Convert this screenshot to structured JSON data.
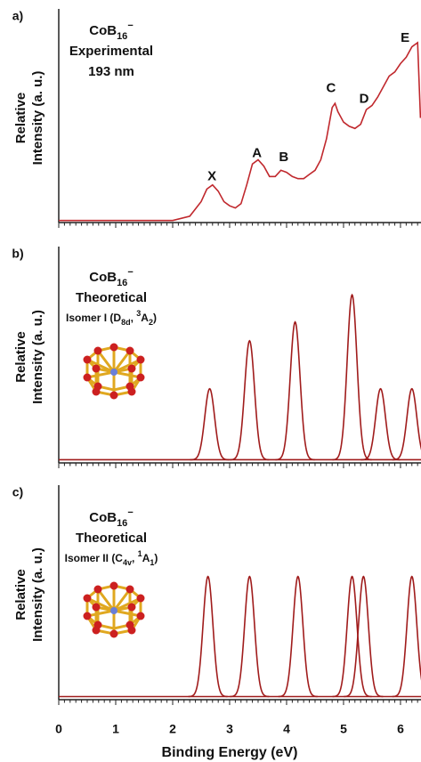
{
  "chart_data": [
    {
      "type": "line",
      "panel_label": "a)",
      "ylabel": [
        "Relative",
        "Intensity (a. u.)"
      ],
      "title_lines": [
        [
          {
            "text": "CoB"
          },
          {
            "text": "16",
            "style": "sub"
          },
          {
            "text": "−",
            "style": "sup"
          }
        ],
        [
          {
            "text": "Experimental"
          }
        ],
        [
          {
            "text": "193 nm"
          }
        ]
      ],
      "x": [
        0,
        2.0,
        2.3,
        2.5,
        2.6,
        2.7,
        2.8,
        2.9,
        3.0,
        3.1,
        3.2,
        3.3,
        3.4,
        3.5,
        3.6,
        3.7,
        3.8,
        3.9,
        4.0,
        4.1,
        4.2,
        4.3,
        4.4,
        4.5,
        4.6,
        4.7,
        4.8,
        4.85,
        4.9,
        5.0,
        5.1,
        5.2,
        5.3,
        5.4,
        5.5,
        5.6,
        5.7,
        5.8,
        5.9,
        6.0,
        6.1,
        6.2,
        6.3,
        6.35
      ],
      "values": [
        0.01,
        0.01,
        0.03,
        0.1,
        0.16,
        0.18,
        0.15,
        0.1,
        0.08,
        0.07,
        0.09,
        0.18,
        0.28,
        0.3,
        0.27,
        0.22,
        0.22,
        0.25,
        0.24,
        0.22,
        0.21,
        0.21,
        0.23,
        0.25,
        0.3,
        0.4,
        0.55,
        0.57,
        0.53,
        0.48,
        0.46,
        0.45,
        0.47,
        0.54,
        0.56,
        0.6,
        0.65,
        0.7,
        0.72,
        0.76,
        0.79,
        0.84,
        0.86,
        0.5
      ],
      "color": "#c0282d",
      "annotations": [
        {
          "text": "X",
          "x": 2.69,
          "y": 0.22
        },
        {
          "text": "A",
          "x": 3.48,
          "y": 0.33
        },
        {
          "text": "B",
          "x": 3.95,
          "y": 0.31
        },
        {
          "text": "C",
          "x": 4.78,
          "y": 0.64
        },
        {
          "text": "D",
          "x": 5.36,
          "y": 0.59
        },
        {
          "text": "E",
          "x": 6.08,
          "y": 0.88
        }
      ],
      "xlim": [
        0,
        6.36
      ],
      "ylim": [
        0,
        1
      ],
      "xticks": [
        0,
        1,
        2,
        3,
        4,
        5,
        6
      ]
    },
    {
      "type": "peaks",
      "panel_label": "b)",
      "ylabel": [
        "Relative",
        "Intensity (a. u.)"
      ],
      "title_lines": [
        [
          {
            "text": "CoB"
          },
          {
            "text": "16",
            "style": "sub"
          },
          {
            "text": "−",
            "style": "sup"
          }
        ],
        [
          {
            "text": "Theoretical"
          }
        ],
        [
          {
            "text": "Isomer I (D"
          },
          {
            "text": "8d",
            "style": "sub"
          },
          {
            "text": ", "
          },
          {
            "text": "3",
            "style": "sup"
          },
          {
            "text": "A"
          },
          {
            "text": "2",
            "style": "sub"
          },
          {
            "text": ")"
          }
        ]
      ],
      "x": [
        2.65,
        3.35,
        4.15,
        5.15,
        5.65,
        6.2
      ],
      "values": [
        0.34,
        0.57,
        0.66,
        0.79,
        0.34,
        0.34
      ],
      "color": "#a01c1c",
      "xlim": [
        0,
        6.36
      ],
      "ylim": [
        -0.015,
        1
      ],
      "xticks": [
        0,
        1,
        2,
        3,
        4,
        5,
        6
      ]
    },
    {
      "type": "peaks",
      "panel_label": "c)",
      "ylabel": [
        "Relative",
        "Intensity (a. u.)"
      ],
      "title_lines": [
        [
          {
            "text": "CoB"
          },
          {
            "text": "16",
            "style": "sub"
          },
          {
            "text": "−",
            "style": "sup"
          }
        ],
        [
          {
            "text": "Theoretical"
          }
        ],
        [
          {
            "text": "Isomer II (C"
          },
          {
            "text": "4v",
            "style": "sub"
          },
          {
            "text": ", "
          },
          {
            "text": "1",
            "style": "sup"
          },
          {
            "text": "A"
          },
          {
            "text": "1",
            "style": "sub"
          },
          {
            "text": ")"
          }
        ]
      ],
      "x": [
        2.62,
        3.35,
        4.2,
        5.15,
        5.35,
        6.2
      ],
      "values": [
        0.58,
        0.58,
        0.58,
        0.58,
        0.58,
        0.58
      ],
      "color": "#a01c1c",
      "xlim": [
        0,
        6.36
      ],
      "ylim": [
        -0.015,
        1
      ],
      "xticks": [
        0,
        1,
        2,
        3,
        4,
        5,
        6
      ],
      "xlabel": "Binding Energy (eV)"
    }
  ]
}
